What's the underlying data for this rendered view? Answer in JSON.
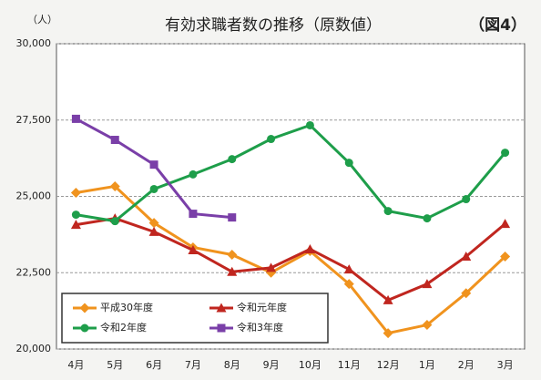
{
  "chart_data": {
    "type": "line",
    "title": "有効求職者数の推移（原数値）",
    "annotation": "（図4）",
    "y_label": "（人）",
    "categories": [
      "4月",
      "5月",
      "6月",
      "7月",
      "8月",
      "9月",
      "10月",
      "11月",
      "12月",
      "1月",
      "2月",
      "3月"
    ],
    "series": [
      {
        "name": "平成30年度",
        "color": "#f0931e",
        "marker": "diamond",
        "values": [
          25120,
          25330,
          24130,
          23330,
          23090,
          22500,
          23210,
          22130,
          20520,
          20790,
          21830,
          23030
        ]
      },
      {
        "name": "令和元年度",
        "color": "#c0261f",
        "marker": "triangle",
        "values": [
          24070,
          24280,
          23840,
          23240,
          22530,
          22660,
          23270,
          22610,
          21600,
          22130,
          23030,
          24100
        ]
      },
      {
        "name": "令和2年度",
        "color": "#1e9e4a",
        "marker": "circle",
        "values": [
          24400,
          24190,
          25240,
          25720,
          26220,
          26880,
          27330,
          26100,
          24520,
          24280,
          24910,
          26430
        ]
      },
      {
        "name": "令和3年度",
        "color": "#7a3fa8",
        "marker": "square",
        "values": [
          27540,
          26850,
          26040,
          24430,
          24310,
          null,
          null,
          null,
          null,
          null,
          null,
          null
        ]
      }
    ],
    "ylim": [
      20000,
      30000
    ],
    "yticks": [
      {
        "value": 20000,
        "label": "20,000"
      },
      {
        "value": 22500,
        "label": "22,500"
      },
      {
        "value": 25000,
        "label": "25,000"
      },
      {
        "value": 27500,
        "label": "27,500"
      },
      {
        "value": 30000,
        "label": "30,000"
      }
    ],
    "grid": true
  }
}
